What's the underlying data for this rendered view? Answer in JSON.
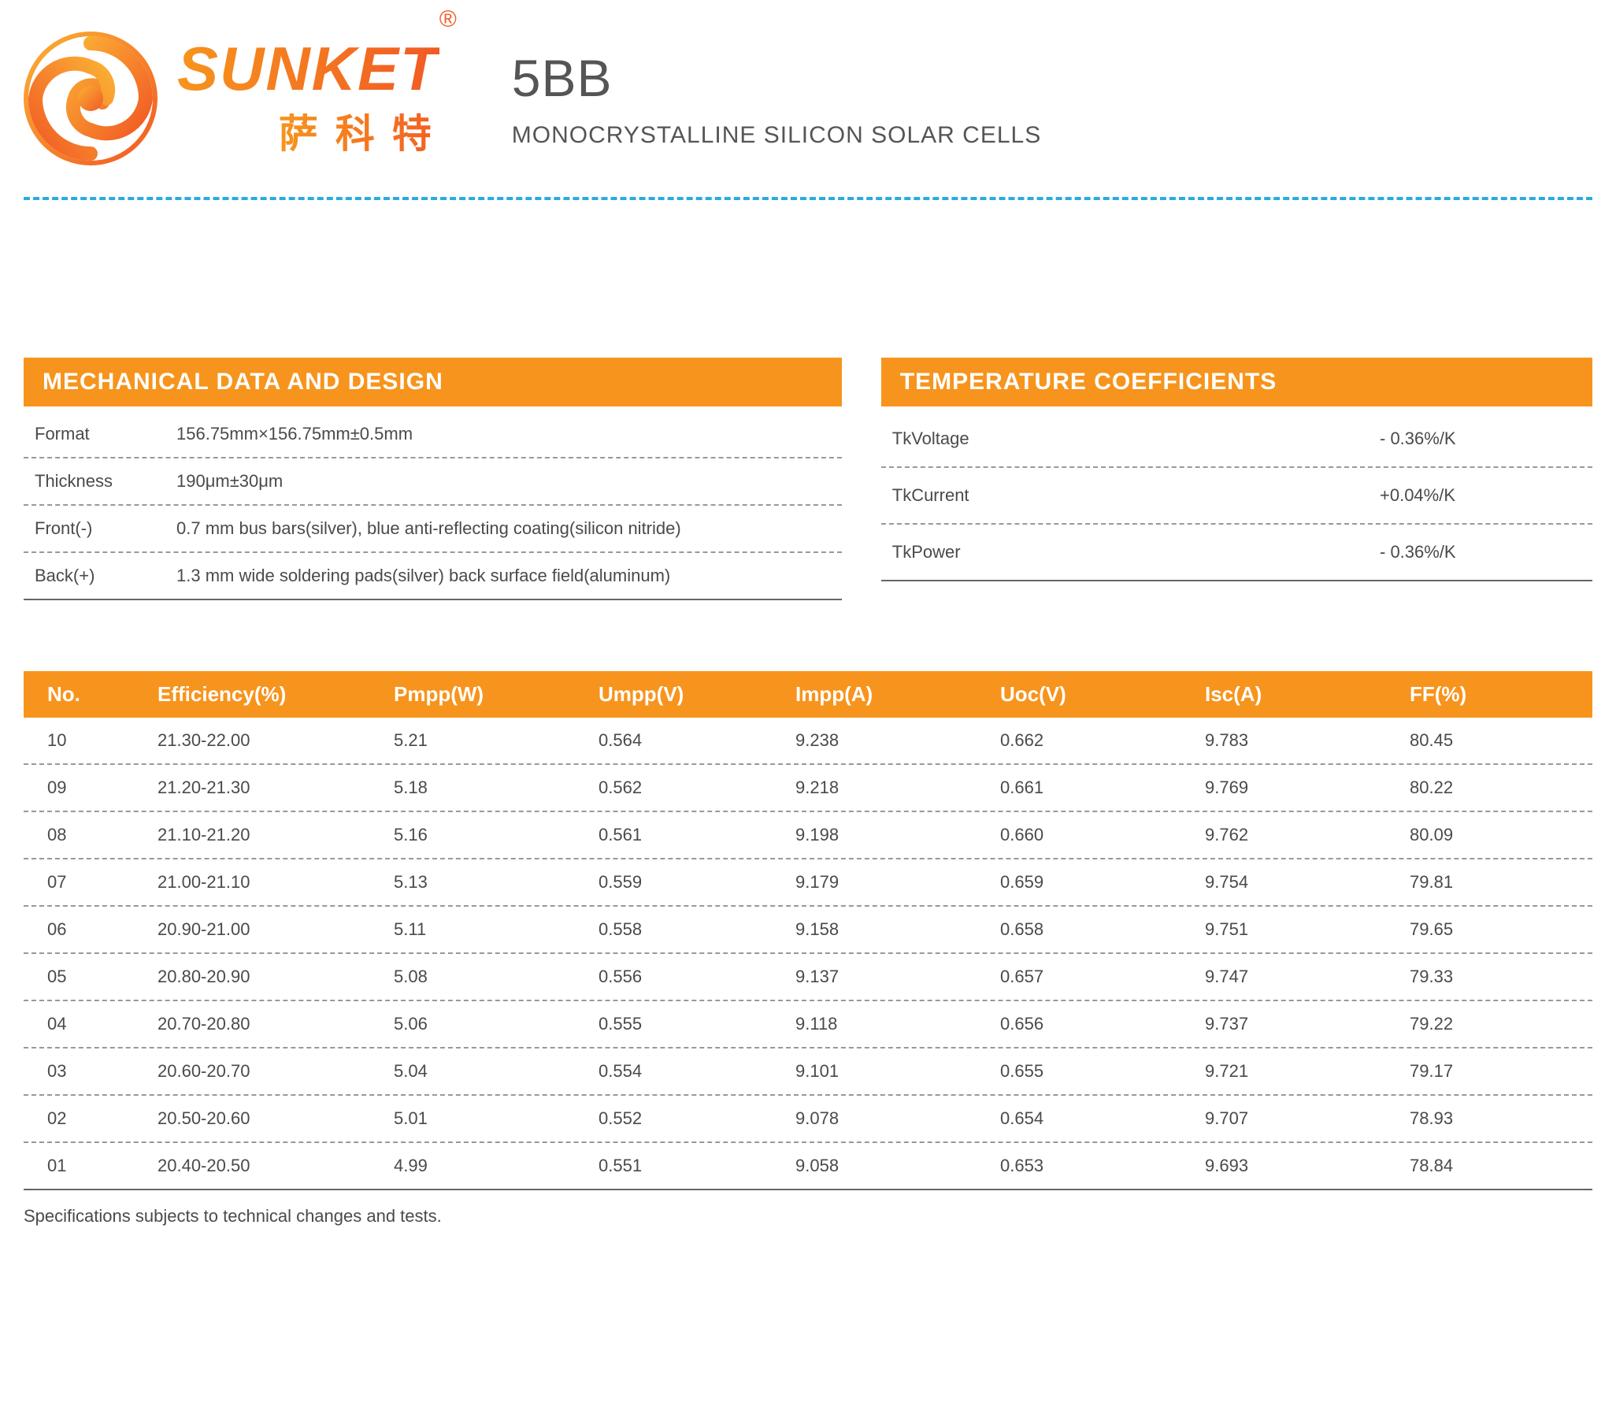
{
  "brand": {
    "name": "SUNKET",
    "name_cn": "萨科特",
    "registered_mark": "®",
    "logo_gradient_start": "#fbb034",
    "logo_gradient_end": "#f15a24"
  },
  "title": {
    "main": "5BB",
    "sub": "MONOCRYSTALLINE SILICON SOLAR CELLS"
  },
  "colors": {
    "accent": "#f7941d",
    "divider_dash": "#29abe2",
    "text": "#4a4a4a",
    "row_dash": "#999999",
    "row_solid": "#666666",
    "white": "#ffffff"
  },
  "mechanical": {
    "header": "MECHANICAL DATA AND DESIGN",
    "rows": [
      {
        "label": "Format",
        "value": "156.75mm×156.75mm±0.5mm"
      },
      {
        "label": "Thickness",
        "value": "190μm±30μm"
      },
      {
        "label": "Front(-)",
        "value": "0.7 mm bus bars(silver), blue anti-reflecting coating(silicon nitride)"
      },
      {
        "label": "Back(+)",
        "value": "1.3 mm wide soldering pads(silver) back surface field(aluminum)"
      }
    ]
  },
  "temperature": {
    "header": "TEMPERATURE COEFFICIENTS",
    "rows": [
      {
        "label": "TkVoltage",
        "value": "- 0.36%/K"
      },
      {
        "label": "TkCurrent",
        "value": "+0.04%/K"
      },
      {
        "label": "TkPower",
        "value": "- 0.36%/K"
      }
    ]
  },
  "main_table": {
    "columns": [
      "No.",
      "Efficiency(%)",
      "Pmpp(W)",
      "Umpp(V)",
      "Impp(A)",
      "Uoc(V)",
      "Isc(A)",
      "FF(%)"
    ],
    "rows": [
      [
        "10",
        "21.30-22.00",
        "5.21",
        "0.564",
        "9.238",
        "0.662",
        "9.783",
        "80.45"
      ],
      [
        "09",
        "21.20-21.30",
        "5.18",
        "0.562",
        "9.218",
        "0.661",
        "9.769",
        "80.22"
      ],
      [
        "08",
        "21.10-21.20",
        "5.16",
        "0.561",
        "9.198",
        "0.660",
        "9.762",
        "80.09"
      ],
      [
        "07",
        "21.00-21.10",
        "5.13",
        "0.559",
        "9.179",
        "0.659",
        "9.754",
        "79.81"
      ],
      [
        "06",
        "20.90-21.00",
        "5.11",
        "0.558",
        "9.158",
        "0.658",
        "9.751",
        "79.65"
      ],
      [
        "05",
        "20.80-20.90",
        "5.08",
        "0.556",
        "9.137",
        "0.657",
        "9.747",
        "79.33"
      ],
      [
        "04",
        "20.70-20.80",
        "5.06",
        "0.555",
        "9.118",
        "0.656",
        "9.737",
        "79.22"
      ],
      [
        "03",
        "20.60-20.70",
        "5.04",
        "0.554",
        "9.101",
        "0.655",
        "9.721",
        "79.17"
      ],
      [
        "02",
        "20.50-20.60",
        "5.01",
        "0.552",
        "9.078",
        "0.654",
        "9.707",
        "78.93"
      ],
      [
        "01",
        "20.40-20.50",
        "4.99",
        "0.551",
        "9.058",
        "0.653",
        "9.693",
        "78.84"
      ]
    ]
  },
  "footnote": "Specifications subjects to technical changes and tests."
}
